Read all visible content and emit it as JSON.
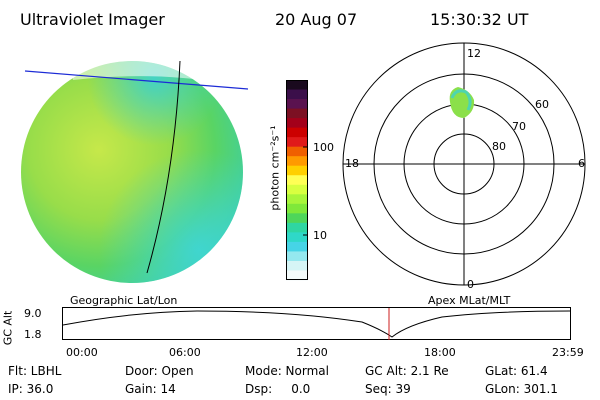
{
  "header": {
    "instrument": "Ultraviolet Imager",
    "date": "20 Aug 07",
    "time": "15:30:32 UT"
  },
  "colorbar": {
    "unit_label": "photon cm⁻²s⁻¹",
    "ticks": [
      "100",
      "10"
    ],
    "colors": [
      "#1a0a1e",
      "#3b0f4a",
      "#5a124f",
      "#7c1023",
      "#a3001a",
      "#cc0000",
      "#e01a1a",
      "#f06000",
      "#ff9a00",
      "#ffd000",
      "#ffff55",
      "#d8ff40",
      "#a8f53a",
      "#7fe83a",
      "#4ed65a",
      "#2fd6a2",
      "#2fd8c8",
      "#46d4e6",
      "#94e8ef",
      "#d6f5f6",
      "#f4fbfb"
    ]
  },
  "polar": {
    "mlt_labels": {
      "top": "12",
      "right": "6",
      "bottom": "0",
      "left": "18"
    },
    "lat_labels": [
      "60",
      "70",
      "80"
    ]
  },
  "timeline": {
    "left_label": "Geographic Lat/Lon",
    "right_label": "Apex MLat/MLT",
    "y_axis_label": "GC Alt",
    "y_ticks": [
      "9.0",
      "1.8"
    ],
    "x_ticks": [
      "00:00",
      "06:00",
      "12:00",
      "18:00",
      "23:59"
    ]
  },
  "footer": {
    "row1": {
      "filter": "Flt: LBHL",
      "door": "Door: Open",
      "mode": "Mode: Normal",
      "gc_alt": "GC Alt: 2.1 Re",
      "glat": "GLat:  61.4"
    },
    "row2": {
      "ip": "IP: 36.0",
      "gain": "Gain: 14",
      "dsp": "Dsp:     0.0",
      "seq": "Seq: 39",
      "glon": "GLon: 301.1"
    }
  }
}
